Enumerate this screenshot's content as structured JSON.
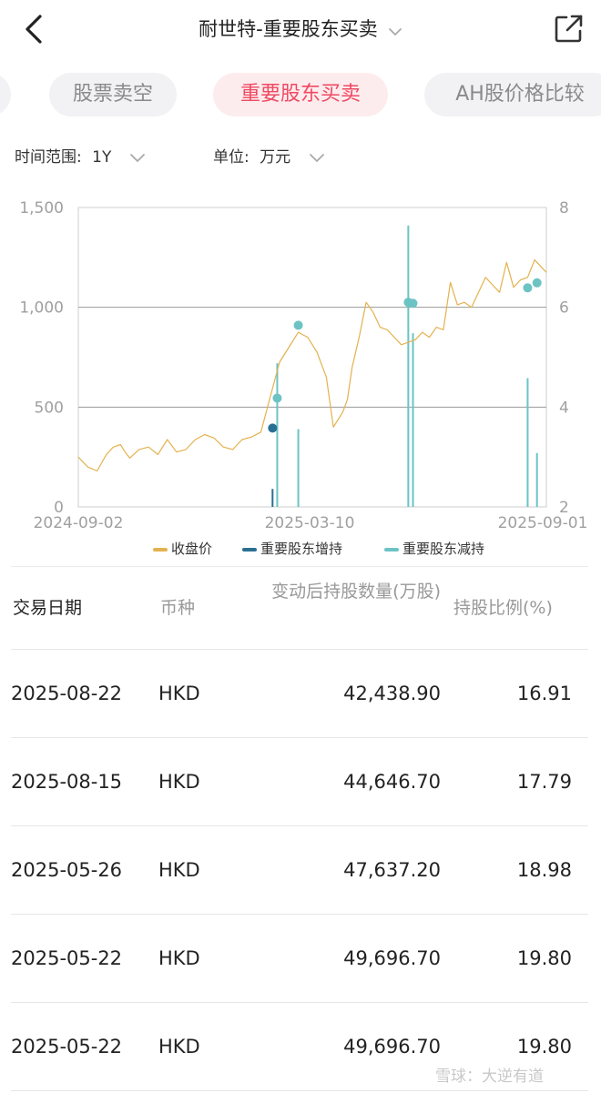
{
  "header": {
    "title": "耐世特-重要股东买卖",
    "back_icon": "chevron-left-icon",
    "share_icon": "share-external-icon",
    "title_dropdown_icon": "chevron-down-icon"
  },
  "tabs": [
    {
      "label": "股票卖空",
      "active": false
    },
    {
      "label": "重要股东买卖",
      "active": true
    },
    {
      "label": "AH股价格比较",
      "active": false
    }
  ],
  "filters": {
    "range_label": "时间范围:",
    "range_value": "1Y",
    "unit_label": "单位:",
    "unit_value": "万元"
  },
  "colors": {
    "price_line": "#e3b24f",
    "increase": "#2a6f93",
    "decrease": "#6cc3c4",
    "accent": "#ef4a62",
    "grid": "#d6d6d6"
  },
  "chart_data": {
    "type": "line",
    "x_labels": [
      "2024-09-02",
      "2025-03-10",
      "2025-09-01"
    ],
    "left_axis": {
      "ticks": [
        "0",
        "500",
        "1,000",
        "1,500"
      ],
      "range": [
        0,
        1500
      ]
    },
    "right_axis": {
      "ticks": [
        "2",
        "4",
        "6",
        "8"
      ],
      "range": [
        2,
        8
      ]
    },
    "grid": true,
    "legend": {
      "placement": "bottom",
      "entries": [
        {
          "label": "收盘价",
          "color": "#e3b24f"
        },
        {
          "label": "重要股东增持",
          "color": "#2a6f93"
        },
        {
          "label": "重要股东减持",
          "color": "#6cc3c4"
        }
      ]
    },
    "price_series": {
      "name": "收盘价",
      "t": [
        0,
        0.02,
        0.04,
        0.06,
        0.075,
        0.09,
        0.1,
        0.11,
        0.13,
        0.15,
        0.17,
        0.19,
        0.21,
        0.23,
        0.25,
        0.27,
        0.29,
        0.31,
        0.33,
        0.35,
        0.37,
        0.39,
        0.41,
        0.43,
        0.45,
        0.47,
        0.49,
        0.51,
        0.53,
        0.545,
        0.555,
        0.565,
        0.575,
        0.585,
        0.6,
        0.615,
        0.63,
        0.645,
        0.66,
        0.675,
        0.69,
        0.705,
        0.72,
        0.735,
        0.75,
        0.765,
        0.78,
        0.795,
        0.81,
        0.825,
        0.84,
        0.855,
        0.87,
        0.885,
        0.9,
        0.915,
        0.93,
        0.945,
        0.96,
        0.975,
        0.99,
        1.0
      ],
      "y": [
        3.0,
        2.8,
        2.72,
        3.05,
        3.2,
        3.25,
        3.1,
        2.98,
        3.15,
        3.2,
        3.05,
        3.35,
        3.1,
        3.15,
        3.35,
        3.45,
        3.38,
        3.2,
        3.15,
        3.35,
        3.4,
        3.5,
        4.2,
        4.9,
        5.2,
        5.5,
        5.4,
        5.1,
        4.6,
        3.6,
        3.75,
        3.9,
        4.15,
        4.8,
        5.4,
        6.1,
        5.9,
        5.6,
        5.55,
        5.4,
        5.25,
        5.3,
        5.35,
        5.5,
        5.4,
        5.6,
        5.55,
        6.5,
        6.05,
        6.1,
        6.0,
        6.3,
        6.6,
        6.45,
        6.3,
        6.9,
        6.4,
        6.55,
        6.6,
        6.95,
        6.8,
        6.7
      ]
    },
    "trade_points": [
      {
        "t": 0.415,
        "price": 3.58,
        "type": "increase",
        "bar": 0.06
      },
      {
        "t": 0.425,
        "price": 4.18,
        "type": "decrease",
        "bar": 0.48
      },
      {
        "t": 0.47,
        "price": 5.64,
        "type": "decrease",
        "bar": 0.26
      },
      {
        "t": 0.705,
        "price": 6.1,
        "type": "decrease",
        "bar": 0.94
      },
      {
        "t": 0.715,
        "price": 6.08,
        "type": "decrease",
        "bar": 0.58
      },
      {
        "t": 0.96,
        "price": 6.39,
        "type": "decrease",
        "bar": 0.43
      },
      {
        "t": 0.98,
        "price": 6.49,
        "type": "decrease",
        "bar": 0.18
      }
    ]
  },
  "table": {
    "headers": [
      "交易日期",
      "币种",
      "变动后持股数量(万股)",
      "持股比例(%)"
    ],
    "rows": [
      [
        "2025-08-22",
        "HKD",
        "42,438.90",
        "16.91"
      ],
      [
        "2025-08-15",
        "HKD",
        "44,646.70",
        "17.79"
      ],
      [
        "2025-05-26",
        "HKD",
        "47,637.20",
        "18.98"
      ],
      [
        "2025-05-22",
        "HKD",
        "49,696.70",
        "19.80"
      ],
      [
        "2025-05-22",
        "HKD",
        "49,696.70",
        "19.80"
      ]
    ]
  },
  "watermark": "雪球：大逆有道"
}
